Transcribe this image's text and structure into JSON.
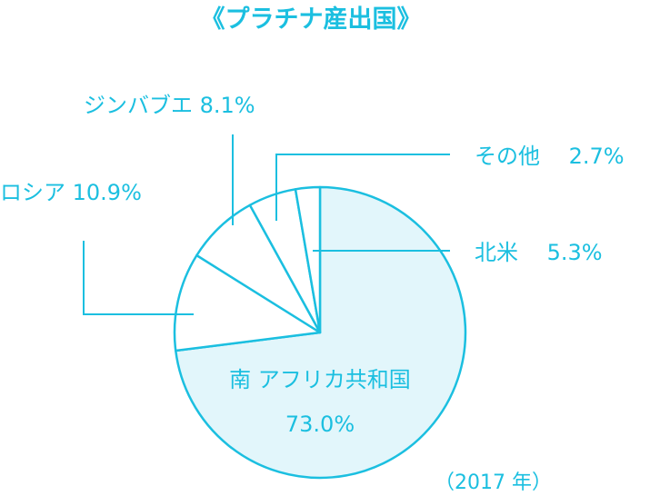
{
  "chart_data": {
    "type": "pie",
    "title": "《プラチナ産出国》",
    "note": "（2017 年）",
    "slices": [
      {
        "name": "南アフリカ共和国",
        "label_main": "南 アフリカ共和国",
        "label_value": "73.0%",
        "value": 73.0
      },
      {
        "name": "ロシア",
        "label_main": "ロシア  10.9%",
        "value": 10.9
      },
      {
        "name": "ジンバブエ",
        "label_main": "ジンバブエ  8.1%",
        "value": 8.1
      },
      {
        "name": "北米",
        "label_main": "北米　 5.3%",
        "value": 5.3
      },
      {
        "name": "その他",
        "label_main": "その他　 2.7%",
        "value": 2.7
      }
    ],
    "start": "12 o'clock",
    "direction": "clockwise",
    "colors": {
      "primary": "#1bbfe0",
      "fill_major": "#e2f6fb",
      "fill_minor": "#ffffff"
    }
  }
}
